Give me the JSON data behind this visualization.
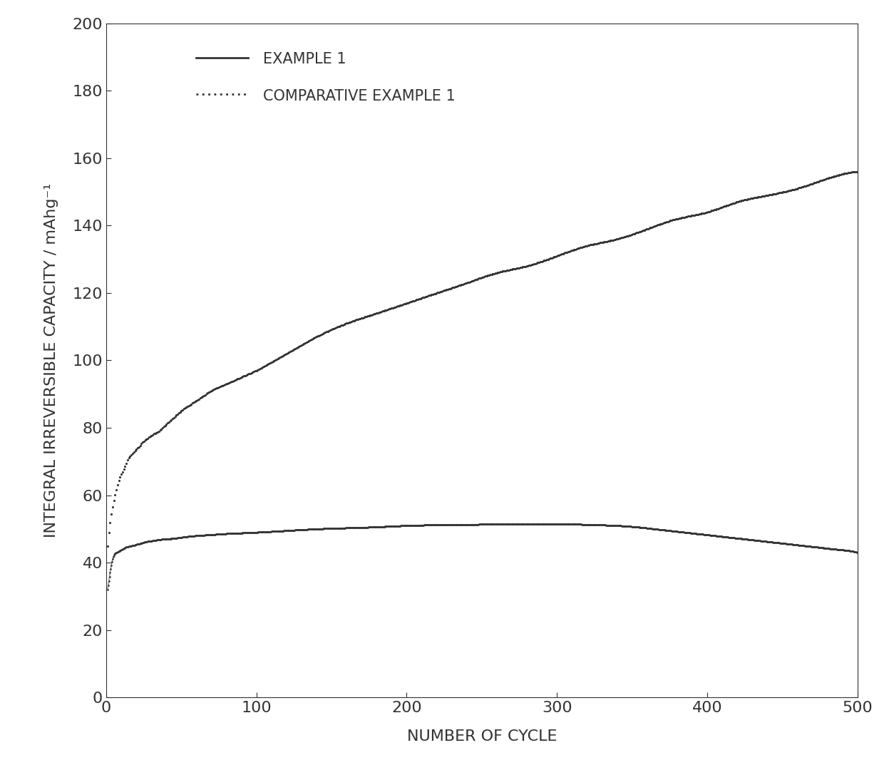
{
  "title": "",
  "xlabel": "NUMBER OF CYCLE",
  "ylabel": "INTEGRAL IRREVERSIBLE CAPACITY / mAhg⁻¹",
  "xlim": [
    0,
    500
  ],
  "ylim": [
    0,
    200
  ],
  "xticks": [
    0,
    100,
    200,
    300,
    400,
    500
  ],
  "yticks": [
    0,
    20,
    40,
    60,
    80,
    100,
    120,
    140,
    160,
    180,
    200
  ],
  "example1": {
    "x": [
      1,
      3,
      5,
      7,
      9,
      11,
      13,
      15,
      17,
      19,
      21,
      23,
      25,
      28,
      31,
      35,
      40,
      45,
      50,
      60,
      70,
      80,
      90,
      100,
      120,
      140,
      160,
      180,
      200,
      220,
      240,
      260,
      280,
      300,
      320,
      340,
      355,
      365,
      375,
      385,
      395,
      405,
      415,
      425,
      435,
      445,
      455,
      465,
      475,
      485,
      495,
      500
    ],
    "y": [
      32,
      38,
      42,
      43,
      43.5,
      44,
      44.5,
      44.8,
      45.0,
      45.2,
      45.5,
      45.7,
      46.0,
      46.3,
      46.5,
      46.8,
      47.0,
      47.2,
      47.5,
      48.0,
      48.3,
      48.6,
      48.8,
      49.0,
      49.5,
      50.0,
      50.3,
      50.6,
      51.0,
      51.2,
      51.3,
      51.4,
      51.4,
      51.5,
      51.3,
      51.0,
      50.5,
      50.0,
      49.5,
      49.0,
      48.5,
      48.0,
      47.5,
      47.0,
      46.5,
      46.0,
      45.5,
      45.0,
      44.5,
      44.0,
      43.5,
      43.0
    ]
  },
  "comp_example1": {
    "x": [
      1,
      3,
      5,
      7,
      9,
      11,
      13,
      15,
      17,
      19,
      21,
      23,
      25,
      28,
      31,
      35,
      40,
      45,
      50,
      60,
      70,
      80,
      90,
      100,
      120,
      140,
      160,
      180,
      200,
      220,
      240,
      260,
      280,
      300,
      320,
      340,
      360,
      380,
      400,
      420,
      440,
      460,
      480,
      500
    ],
    "y": [
      45,
      53,
      58,
      62,
      65,
      67,
      69,
      71,
      72,
      73,
      74,
      75,
      76,
      77,
      78,
      79,
      81,
      83,
      85,
      88,
      91,
      93,
      95,
      97,
      102,
      107,
      111,
      114,
      117,
      120,
      123,
      126,
      128,
      131,
      134,
      136,
      139,
      142,
      144,
      147,
      149,
      151,
      154,
      156
    ]
  },
  "background_color": "#ffffff",
  "line_color": "#333333",
  "font_color": "#333333",
  "tick_fontsize": 16,
  "label_fontsize": 16,
  "legend_fontsize": 15,
  "legend_label1": "EXAMPLE 1",
  "legend_label2": "COMPARATIVE EXAMPLE 1"
}
